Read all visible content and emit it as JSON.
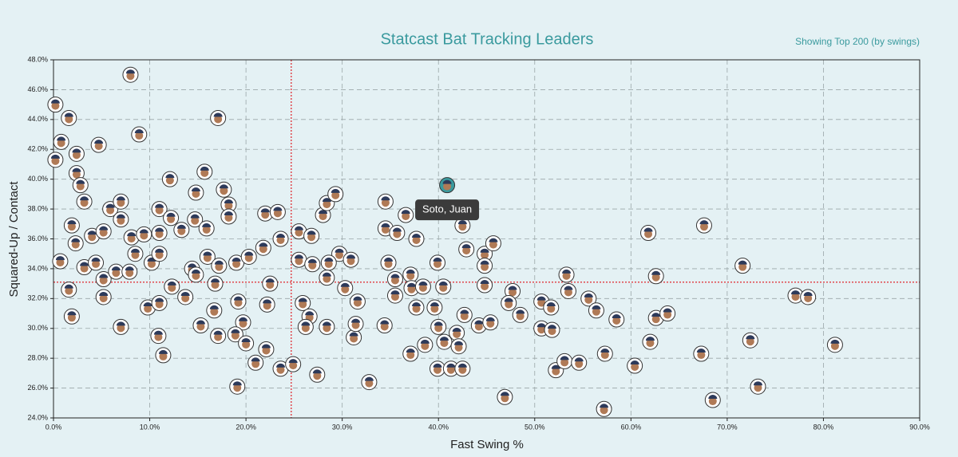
{
  "chart_data": {
    "type": "scatter",
    "title": "Statcast Bat Tracking Leaders",
    "subtitle": "Showing Top 200 (by swings)",
    "x_label": "Fast Swing %",
    "y_label": "Squared-Up / Contact",
    "xlim": [
      0,
      90
    ],
    "ylim": [
      24,
      48
    ],
    "xticks": [
      {
        "value": 0,
        "label": "0.0%"
      },
      {
        "value": 10,
        "label": "10.0%"
      },
      {
        "value": 20,
        "label": "20.0%"
      },
      {
        "value": 30,
        "label": "30.0%"
      },
      {
        "value": 40,
        "label": "40.0%"
      },
      {
        "value": 50,
        "label": "50.0%"
      },
      {
        "value": 60,
        "label": "60.0%"
      },
      {
        "value": 70,
        "label": "70.0%"
      },
      {
        "value": 80,
        "label": "80.0%"
      },
      {
        "value": 90,
        "label": "90.0%"
      }
    ],
    "yticks": [
      {
        "value": 24,
        "label": "24.0%"
      },
      {
        "value": 26,
        "label": "26.0%"
      },
      {
        "value": 28,
        "label": "28.0%"
      },
      {
        "value": 30,
        "label": "30.0%"
      },
      {
        "value": 32,
        "label": "32.0%"
      },
      {
        "value": 34,
        "label": "34.0%"
      },
      {
        "value": 36,
        "label": "36.0%"
      },
      {
        "value": 38,
        "label": "38.0%"
      },
      {
        "value": 40,
        "label": "40.0%"
      },
      {
        "value": 42,
        "label": "42.0%"
      },
      {
        "value": 44,
        "label": "44.0%"
      },
      {
        "value": 46,
        "label": "46.0%"
      },
      {
        "value": 48,
        "label": "48.0%"
      }
    ],
    "grid": true,
    "reference_lines": {
      "x": 24.7,
      "y": 33.1,
      "color": "#e0474c"
    },
    "x": [
      0.2,
      1.6,
      8.0,
      0.8,
      4.7,
      2.4,
      0.2,
      8.9,
      17.1,
      2.4,
      2.8,
      12.1,
      15.7,
      3.2,
      1.9,
      0.7,
      1.6,
      1.9,
      2.3,
      4.0,
      5.2,
      5.9,
      7.0,
      7.0,
      8.1,
      9.4,
      11.0,
      11.0,
      12.2,
      13.3,
      14.7,
      15.9,
      14.8,
      17.7,
      18.2,
      18.2,
      3.2,
      4.4,
      5.2,
      5.2,
      6.5,
      7.9,
      8.5,
      10.2,
      11.0,
      9.8,
      11.0,
      12.3,
      13.7,
      10.9,
      11.4,
      7.0,
      14.4,
      14.8,
      16.0,
      17.2,
      19.0,
      16.8,
      15.3,
      16.7,
      17.1,
      19.2,
      19.7,
      18.9,
      20.0,
      19.1,
      21.0,
      20.3,
      21.8,
      22.0,
      23.3,
      23.6,
      22.5,
      22.2,
      22.1,
      23.6,
      24.9,
      25.5,
      26.8,
      25.5,
      26.9,
      25.9,
      26.6,
      26.2,
      27.4,
      28.0,
      28.4,
      29.3,
      29.7,
      28.6,
      28.4,
      28.4,
      30.9,
      30.3,
      31.6,
      31.2,
      31.4,
      32.8,
      34.5,
      34.5,
      35.7,
      34.8,
      35.5,
      35.5,
      34.4,
      36.6,
      37.7,
      37.1,
      37.2,
      37.7,
      37.1,
      38.6,
      38.4,
      39.9,
      40.5,
      39.6,
      40.0,
      40.6,
      39.9,
      41.3,
      42.5,
      41.9,
      42.1,
      42.7,
      42.5,
      42.9,
      44.8,
      44.8,
      44.8,
      45.7,
      44.2,
      45.4,
      47.7,
      47.3,
      48.5,
      46.9,
      50.7,
      50.7,
      51.8,
      51.7,
      52.2,
      53.1,
      53.3,
      53.5,
      54.6,
      55.6,
      56.4,
      57.3,
      57.2,
      58.5,
      60.4,
      61.8,
      62.0,
      62.6,
      62.6,
      63.8,
      67.3,
      67.6,
      68.5,
      71.6,
      72.4,
      73.2,
      77.1,
      78.4,
      81.2
    ],
    "y": [
      45.0,
      44.1,
      47.0,
      42.5,
      42.3,
      41.7,
      41.3,
      43.0,
      44.1,
      40.4,
      39.6,
      40.0,
      40.5,
      38.5,
      36.9,
      34.5,
      32.6,
      30.8,
      35.7,
      36.2,
      36.5,
      38.0,
      38.5,
      37.3,
      36.1,
      36.3,
      38.0,
      36.4,
      37.4,
      36.6,
      37.3,
      36.7,
      39.1,
      39.3,
      38.3,
      37.5,
      34.1,
      34.4,
      33.3,
      32.1,
      33.8,
      33.8,
      35.0,
      34.4,
      35.0,
      31.4,
      31.7,
      32.8,
      32.1,
      29.5,
      28.2,
      30.1,
      34.0,
      33.6,
      34.8,
      34.2,
      34.4,
      33.0,
      30.2,
      31.2,
      29.5,
      31.8,
      30.4,
      29.6,
      29.0,
      26.1,
      27.7,
      34.8,
      35.4,
      37.7,
      37.8,
      36.0,
      33.0,
      31.6,
      28.6,
      27.3,
      27.6,
      36.5,
      36.2,
      34.6,
      34.3,
      31.7,
      30.8,
      30.1,
      26.9,
      37.6,
      38.4,
      39.0,
      35.0,
      34.4,
      33.4,
      30.1,
      34.6,
      32.7,
      31.8,
      29.4,
      30.3,
      26.4,
      38.5,
      36.7,
      36.4,
      34.4,
      33.3,
      32.2,
      30.2,
      37.6,
      36.0,
      33.6,
      32.7,
      31.4,
      28.3,
      28.9,
      32.8,
      34.4,
      32.8,
      31.4,
      30.1,
      29.1,
      27.3,
      27.3,
      27.3,
      29.7,
      28.8,
      30.9,
      36.9,
      35.3,
      32.9,
      35.0,
      34.2,
      35.7,
      30.2,
      30.4,
      32.5,
      31.7,
      30.9,
      25.4,
      31.8,
      30.0,
      29.9,
      31.4,
      27.2,
      27.8,
      33.6,
      32.5,
      27.7,
      32.0,
      31.2,
      28.3,
      24.6,
      30.6,
      27.5,
      36.4,
      29.1,
      33.5,
      30.7,
      31.0,
      28.3,
      36.9,
      25.2,
      34.2,
      29.2,
      26.1,
      32.2,
      32.1,
      28.9
    ],
    "highlight": {
      "name": "Soto, Juan",
      "x": 40.9,
      "y": 39.6,
      "color": "#3a9a9e"
    }
  }
}
